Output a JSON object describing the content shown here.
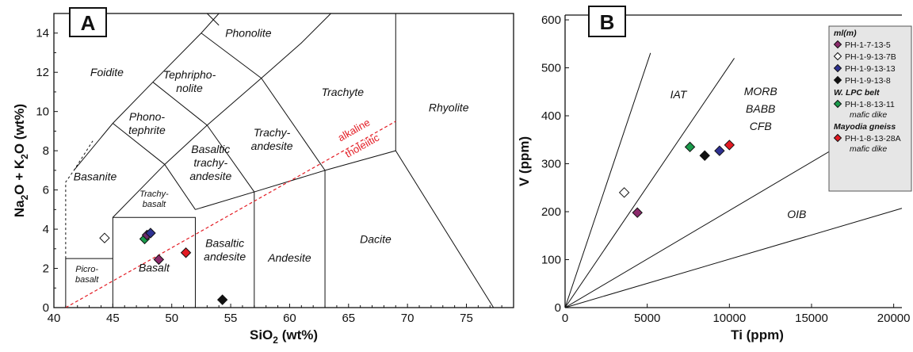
{
  "chart_data": [
    {
      "panel": "A",
      "type": "scatter",
      "xlabel_main": "SiO",
      "xlabel_sub": "2",
      "xlabel_tail": " (wt%)",
      "ylabel_parts": [
        "Na",
        "2",
        "O + K",
        "2",
        "O (wt%)"
      ],
      "xlim": [
        40,
        79
      ],
      "ylim": [
        0,
        15
      ],
      "xticks": [
        "40",
        "45",
        "50",
        "55",
        "60",
        "65",
        "70",
        "75"
      ],
      "yticks": [
        "0",
        "2",
        "4",
        "6",
        "8",
        "10",
        "12",
        "14"
      ],
      "fields": [
        {
          "lines": [
            "Foidite"
          ],
          "x": 44.5,
          "y": 12
        },
        {
          "lines": [
            "Phonolite"
          ],
          "x": 56.5,
          "y": 14
        },
        {
          "lines": [
            "Tephripho-",
            "nolite"
          ],
          "x": 51.5,
          "y": 11.55
        },
        {
          "lines": [
            "Trachyte"
          ],
          "x": 64.5,
          "y": 11
        },
        {
          "lines": [
            "Rhyolite"
          ],
          "x": 73.5,
          "y": 10.2
        },
        {
          "lines": [
            "Phono-",
            "tephrite"
          ],
          "x": 47.9,
          "y": 9.4
        },
        {
          "lines": [
            "Trachy-",
            "andesite"
          ],
          "x": 58.5,
          "y": 8.6
        },
        {
          "lines": [
            "Basaltic",
            "trachy-",
            "andesite"
          ],
          "x": 53.3,
          "y": 7.4
        },
        {
          "lines": [
            "Basanite"
          ],
          "x": 43.5,
          "y": 6.7
        },
        {
          "lines": [
            "Basaltic",
            "andesite"
          ],
          "x": 54.5,
          "y": 2.95
        },
        {
          "lines": [
            "Andesite"
          ],
          "x": 60,
          "y": 2.55
        },
        {
          "lines": [
            "Dacite"
          ],
          "x": 67.3,
          "y": 3.5
        },
        {
          "lines": [
            "Basalt"
          ],
          "x": 48.5,
          "y": 2.05
        }
      ],
      "small_fields": [
        {
          "lines": [
            "Trachy-",
            "basalt"
          ],
          "x": 48.5,
          "y": 5.6
        },
        {
          "lines": [
            "Picro-",
            "basalt"
          ],
          "x": 42.8,
          "y": 1.75
        }
      ],
      "alkaline_label": "alkaline",
      "tholeiitic_label": "tholeiitic",
      "points": [
        {
          "x": 44.3,
          "y": 3.55,
          "color": "#ffffff"
        },
        {
          "x": 47.7,
          "y": 3.5,
          "color": "#1a9b4b"
        },
        {
          "x": 47.9,
          "y": 3.7,
          "color": "#6b2a6b"
        },
        {
          "x": 48.2,
          "y": 3.8,
          "color": "#2e3192"
        },
        {
          "x": 48.9,
          "y": 2.45,
          "color": "#8b2a6b"
        },
        {
          "x": 51.2,
          "y": 2.8,
          "color": "#e31b23"
        },
        {
          "x": 54.3,
          "y": 0.4,
          "color": "#111111"
        }
      ]
    },
    {
      "panel": "B",
      "type": "scatter",
      "xlabel": "Ti (ppm)",
      "ylabel": "V (ppm)",
      "xlim": [
        0,
        20500
      ],
      "ylim": [
        0,
        610
      ],
      "xticks": [
        "0",
        "5000",
        "10000",
        "15000",
        "20000"
      ],
      "yticks": [
        "0",
        "100",
        "200",
        "300",
        "400",
        "500",
        "600"
      ],
      "fields": [
        {
          "lines": [
            "IAT"
          ],
          "x": 6900,
          "y": 445
        },
        {
          "lines": [
            "MORB",
            "BABB",
            "CFB"
          ],
          "x": 11900,
          "y": 415
        },
        {
          "lines": [
            "OIB"
          ],
          "x": 14100,
          "y": 195
        }
      ],
      "points": [
        {
          "x": 3600,
          "y": 240,
          "color": "#ffffff"
        },
        {
          "x": 4400,
          "y": 198,
          "color": "#8b2a6b"
        },
        {
          "x": 7600,
          "y": 335,
          "color": "#1a9b4b"
        },
        {
          "x": 8500,
          "y": 317,
          "color": "#111111"
        },
        {
          "x": 9400,
          "y": 327,
          "color": "#2e3192"
        },
        {
          "x": 10000,
          "y": 339,
          "color": "#e31b23"
        }
      ],
      "legend": [
        {
          "kind": "header",
          "text": "ml(m)"
        },
        {
          "kind": "item",
          "text": "PH-1-7-13-5",
          "color": "#8b2a6b"
        },
        {
          "kind": "item",
          "text": "PH-1-9-13-7B",
          "color": "#ffffff"
        },
        {
          "kind": "item",
          "text": "PH-1-9-13-13",
          "color": "#2e3192"
        },
        {
          "kind": "item",
          "text": "PH-1-9-13-8",
          "color": "#111111"
        },
        {
          "kind": "header",
          "text": "W. LPC belt"
        },
        {
          "kind": "item",
          "text": "PH-1-8-13-11",
          "color": "#1a9b4b"
        },
        {
          "kind": "note",
          "text": "mafic dike"
        },
        {
          "kind": "header",
          "text": "Mayodia gneiss"
        },
        {
          "kind": "item",
          "text": "PH-1-8-13-28A",
          "color": "#e31b23"
        },
        {
          "kind": "note",
          "text": "mafic dike"
        }
      ]
    }
  ]
}
